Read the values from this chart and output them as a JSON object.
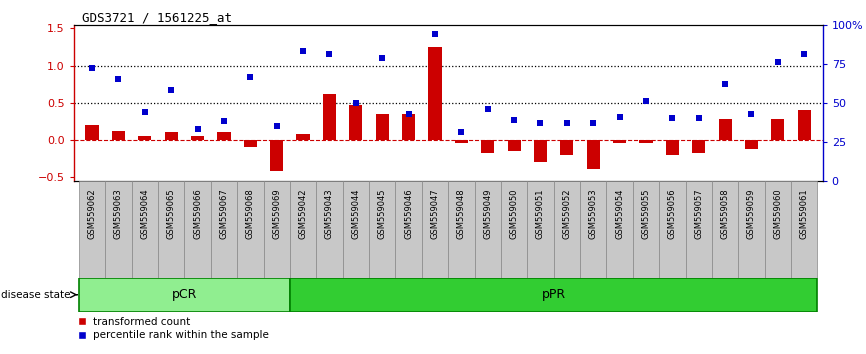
{
  "title": "GDS3721 / 1561225_at",
  "samples": [
    "GSM559062",
    "GSM559063",
    "GSM559064",
    "GSM559065",
    "GSM559066",
    "GSM559067",
    "GSM559068",
    "GSM559069",
    "GSM559042",
    "GSM559043",
    "GSM559044",
    "GSM559045",
    "GSM559046",
    "GSM559047",
    "GSM559048",
    "GSM559049",
    "GSM559050",
    "GSM559051",
    "GSM559052",
    "GSM559053",
    "GSM559054",
    "GSM559055",
    "GSM559056",
    "GSM559057",
    "GSM559058",
    "GSM559059",
    "GSM559060",
    "GSM559061"
  ],
  "transformed_count": [
    0.2,
    0.12,
    0.05,
    0.1,
    0.05,
    0.1,
    -0.1,
    -0.42,
    0.08,
    0.62,
    0.47,
    0.35,
    0.35,
    1.25,
    -0.05,
    -0.18,
    -0.15,
    -0.3,
    -0.2,
    -0.4,
    -0.05,
    -0.05,
    -0.2,
    -0.18,
    0.28,
    -0.12,
    0.28,
    0.4
  ],
  "percentile_rank": [
    0.97,
    0.82,
    0.37,
    0.67,
    0.14,
    0.25,
    0.85,
    0.18,
    1.2,
    1.15,
    0.5,
    1.1,
    0.35,
    1.42,
    0.1,
    0.42,
    0.27,
    0.23,
    0.22,
    0.22,
    0.3,
    0.52,
    0.29,
    0.29,
    0.75,
    0.35,
    1.05,
    1.15
  ],
  "pCR_count": 8,
  "pPR_count": 20,
  "bar_color": "#cc0000",
  "dot_color": "#0000cc",
  "pCR_color": "#90ee90",
  "pPR_color": "#32cd32",
  "group_border_color": "#008000",
  "ylim_left": [
    -0.55,
    1.55
  ],
  "yticks_left": [
    -0.5,
    0.0,
    0.5,
    1.0,
    1.5
  ],
  "yticks_right": [
    0,
    25,
    50,
    75,
    100
  ],
  "hlines": [
    0.5,
    1.0
  ],
  "bg_color": "#c8c8c8",
  "tick_box_color": "#c8c8c8",
  "tick_box_edge": "#888888"
}
